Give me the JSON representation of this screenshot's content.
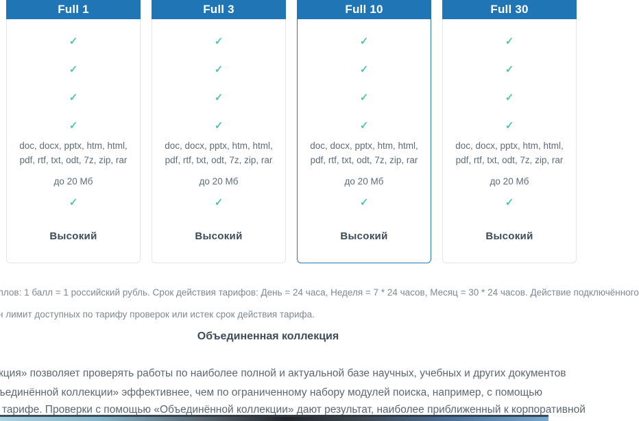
{
  "pricing": {
    "check_icon": "✓",
    "plans": [
      {
        "name": "Full 1",
        "selected": false,
        "formats_line1": "doc, docx, pptx, htm, html,",
        "formats_line2": "pdf, rtf, txt, odt, 7z, zip, rar",
        "size_limit": "до 20 Мб",
        "priority_label": "Высокий"
      },
      {
        "name": "Full 3",
        "selected": false,
        "formats_line1": "doc, docx, pptx, htm, html,",
        "formats_line2": "pdf, rtf, txt, odt, 7z, zip, rar",
        "size_limit": "до 20 Мб",
        "priority_label": "Высокий"
      },
      {
        "name": "Full 10",
        "selected": true,
        "formats_line1": "doc, docx, pptx, htm, html,",
        "formats_line2": "pdf, rtf, txt, odt, 7z, zip, rar",
        "size_limit": "до 20 Мб",
        "priority_label": "Высокий"
      },
      {
        "name": "Full 30",
        "selected": false,
        "formats_line1": "doc, docx, pptx, htm, html,",
        "formats_line2": "pdf, rtf, txt, odt, 7z, zip, rar",
        "size_limit": "до 20 Мб",
        "priority_label": "Высокий"
      }
    ]
  },
  "notes": {
    "line1": "ллов: 1 балл = 1 российский рубль. Срок действия тарифов: День = 24 часа, Неделя = 7 * 24 часов, Месяц = 30 * 24 часов. Действие подключённого",
    "line2": "н лимит доступных по тарифу проверок или истек срок действия тарифа."
  },
  "section": {
    "heading": "Объединенная коллекция",
    "para_line1": "кция» позволяет проверять работы по наиболее полной и актуальной базе научных, учебных и других документов",
    "para_line2": "ъединённой коллекции» эффективнее, чем по ограниченному набору модулей поиска, например, с помощью",
    "para_line3": "тарифе. Проверки с помощью «Объединённой коллекции» дают результат, наиболее приближенный к  корпоративной"
  },
  "colors": {
    "header_blue": "#2076b4",
    "check_teal": "#4cc8a6",
    "card_border": "#e4e5e7",
    "text_dark": "#3e4c5a",
    "text_gray": "#5d6b78",
    "text_muted": "#7e8896"
  }
}
